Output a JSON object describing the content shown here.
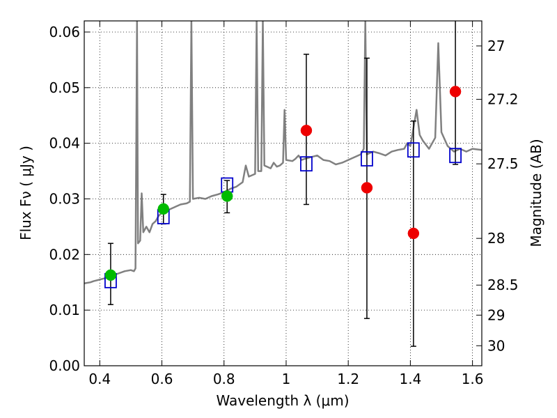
{
  "chart_data": {
    "type": "scatter",
    "xlabel": "Wavelength  λ (μm)",
    "ylabel": "Flux  Fν  ( μJy )",
    "y2label": "Magnitude (AB)",
    "xlim": [
      0.35,
      1.63
    ],
    "ylim": [
      0.0,
      0.062
    ],
    "grid": true,
    "x_ticks": [
      0.4,
      0.6,
      0.8,
      1.0,
      1.2,
      1.4,
      1.6
    ],
    "x_tick_labels": [
      "0.4",
      "0.6",
      "0.8",
      "1",
      "1.2",
      "1.4",
      "1.6"
    ],
    "y_ticks": [
      0.0,
      0.01,
      0.02,
      0.03,
      0.04,
      0.05,
      0.06
    ],
    "y_tick_labels": [
      "0.00",
      "0.01",
      "0.02",
      "0.03",
      "0.04",
      "0.05",
      "0.06"
    ],
    "y2_ticks": [
      {
        "label": "27",
        "flux": 0.0575
      },
      {
        "label": "27.2",
        "flux": 0.0479
      },
      {
        "label": "27.5",
        "flux": 0.0363
      },
      {
        "label": "28",
        "flux": 0.0229
      },
      {
        "label": "28.5",
        "flux": 0.0145
      },
      {
        "label": "29",
        "flux": 0.0091
      },
      {
        "label": "30",
        "flux": 0.0036
      }
    ],
    "series": [
      {
        "kind": "line",
        "color": "#808080",
        "points": [
          [
            0.35,
            0.0148
          ],
          [
            0.37,
            0.015
          ],
          [
            0.38,
            0.0152
          ],
          [
            0.4,
            0.0155
          ],
          [
            0.42,
            0.0158
          ],
          [
            0.44,
            0.0162
          ],
          [
            0.46,
            0.0166
          ],
          [
            0.48,
            0.017
          ],
          [
            0.5,
            0.0172
          ],
          [
            0.51,
            0.017
          ],
          [
            0.515,
            0.0175
          ],
          [
            0.52,
            0.062
          ],
          [
            0.523,
            0.022
          ],
          [
            0.53,
            0.0225
          ],
          [
            0.535,
            0.031
          ],
          [
            0.54,
            0.024
          ],
          [
            0.55,
            0.025
          ],
          [
            0.56,
            0.024
          ],
          [
            0.57,
            0.0255
          ],
          [
            0.58,
            0.026
          ],
          [
            0.59,
            0.027
          ],
          [
            0.6,
            0.0275
          ],
          [
            0.62,
            0.028
          ],
          [
            0.64,
            0.0285
          ],
          [
            0.66,
            0.029
          ],
          [
            0.68,
            0.0292
          ],
          [
            0.69,
            0.0295
          ],
          [
            0.695,
            0.062
          ],
          [
            0.7,
            0.03
          ],
          [
            0.72,
            0.0302
          ],
          [
            0.74,
            0.03
          ],
          [
            0.76,
            0.0305
          ],
          [
            0.78,
            0.0308
          ],
          [
            0.8,
            0.0312
          ],
          [
            0.82,
            0.0318
          ],
          [
            0.84,
            0.0322
          ],
          [
            0.86,
            0.033
          ],
          [
            0.87,
            0.036
          ],
          [
            0.88,
            0.034
          ],
          [
            0.9,
            0.0345
          ],
          [
            0.905,
            0.062
          ],
          [
            0.91,
            0.035
          ],
          [
            0.92,
            0.035
          ],
          [
            0.925,
            0.062
          ],
          [
            0.93,
            0.036
          ],
          [
            0.95,
            0.0355
          ],
          [
            0.96,
            0.0365
          ],
          [
            0.97,
            0.0358
          ],
          [
            0.98,
            0.036
          ],
          [
            0.99,
            0.0365
          ],
          [
            0.995,
            0.046
          ],
          [
            1.0,
            0.037
          ],
          [
            1.02,
            0.0368
          ],
          [
            1.03,
            0.0372
          ],
          [
            1.04,
            0.0378
          ],
          [
            1.05,
            0.037
          ],
          [
            1.06,
            0.0372
          ],
          [
            1.08,
            0.0375
          ],
          [
            1.1,
            0.0378
          ],
          [
            1.12,
            0.037
          ],
          [
            1.14,
            0.0368
          ],
          [
            1.16,
            0.0362
          ],
          [
            1.18,
            0.0365
          ],
          [
            1.2,
            0.037
          ],
          [
            1.22,
            0.0375
          ],
          [
            1.24,
            0.038
          ],
          [
            1.25,
            0.039
          ],
          [
            1.255,
            0.062
          ],
          [
            1.26,
            0.038
          ],
          [
            1.28,
            0.0385
          ],
          [
            1.3,
            0.0382
          ],
          [
            1.32,
            0.0378
          ],
          [
            1.34,
            0.0385
          ],
          [
            1.36,
            0.0388
          ],
          [
            1.38,
            0.039
          ],
          [
            1.39,
            0.04
          ],
          [
            1.4,
            0.0395
          ],
          [
            1.42,
            0.046
          ],
          [
            1.43,
            0.0415
          ],
          [
            1.44,
            0.0405
          ],
          [
            1.46,
            0.039
          ],
          [
            1.48,
            0.041
          ],
          [
            1.49,
            0.058
          ],
          [
            1.5,
            0.042
          ],
          [
            1.52,
            0.0395
          ],
          [
            1.54,
            0.0385
          ],
          [
            1.56,
            0.039
          ],
          [
            1.58,
            0.0385
          ],
          [
            1.6,
            0.039
          ],
          [
            1.63,
            0.0388
          ]
        ]
      },
      {
        "kind": "model_photometry",
        "marker": "open-square",
        "color": "#0000cc",
        "x": [
          0.435,
          0.605,
          0.81,
          1.065,
          1.26,
          1.41,
          1.545
        ],
        "y": [
          0.0153,
          0.0268,
          0.0325,
          0.0363,
          0.0372,
          0.0388,
          0.0378
        ]
      },
      {
        "kind": "detections",
        "marker": "filled-circle",
        "color": "#00bb00",
        "x": [
          0.435,
          0.605,
          0.81
        ],
        "y": [
          0.0163,
          0.0282,
          0.0305
        ],
        "yerr_low": [
          0.011,
          0.0255,
          0.0275
        ],
        "yerr_high": [
          0.022,
          0.0308,
          0.0333
        ]
      },
      {
        "kind": "non_detections",
        "marker": "filled-circle",
        "color": "#ee0000",
        "x": [
          1.065,
          1.26,
          1.41,
          1.545
        ],
        "y": [
          0.0423,
          0.032,
          0.0238,
          0.0493
        ],
        "yerr_low": [
          0.029,
          0.0085,
          0.0035,
          0.0362
        ],
        "yerr_high": [
          0.056,
          0.0553,
          0.044,
          0.062
        ]
      }
    ]
  }
}
